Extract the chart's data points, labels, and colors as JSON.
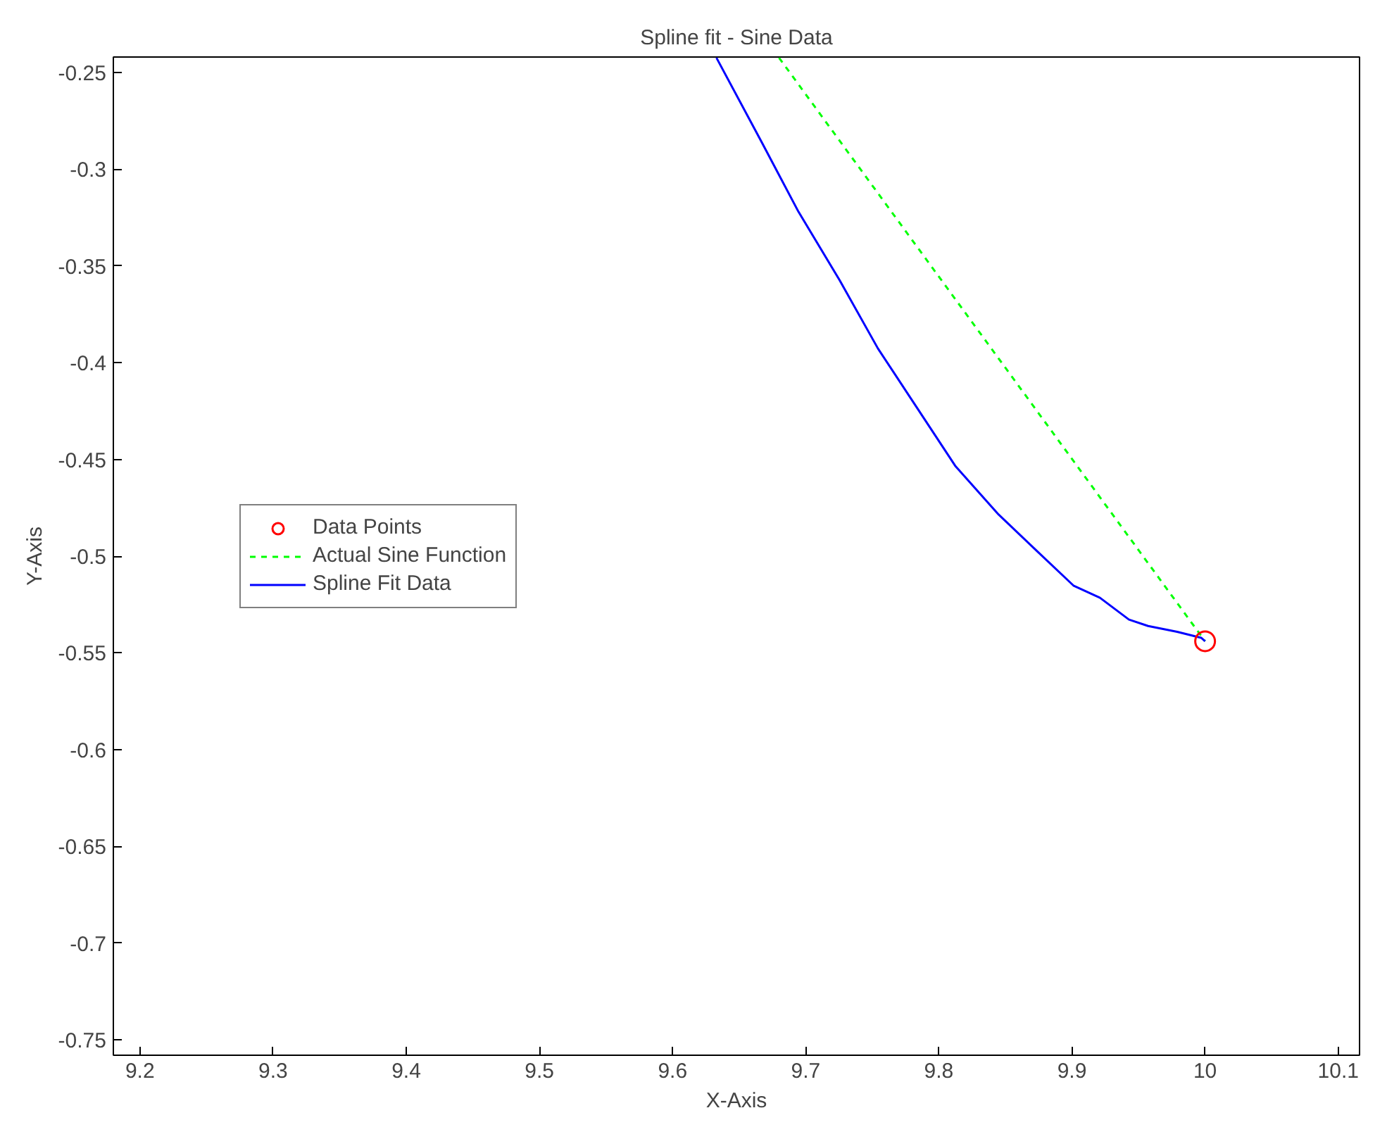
{
  "chart_data": {
    "type": "line",
    "title": "Spline fit - Sine Data",
    "xlabel": "X-Axis",
    "ylabel": "Y-Axis",
    "xlim": [
      9.18,
      10.116
    ],
    "ylim": [
      -0.758,
      -0.242
    ],
    "xticks": [
      9.2,
      9.3,
      9.4,
      9.5,
      9.6,
      9.7,
      9.8,
      9.9,
      10,
      10.1
    ],
    "yticks": [
      -0.25,
      -0.3,
      -0.35,
      -0.4,
      -0.45,
      -0.5,
      -0.55,
      -0.6,
      -0.65,
      -0.7,
      -0.75
    ],
    "grid": false,
    "legend": "left",
    "series": [
      {
        "name": "Data Points",
        "type": "scatter",
        "marker": "circle",
        "color": "#ff0000",
        "x": [
          10
        ],
        "values": [
          -0.544
        ]
      },
      {
        "name": "Actual Sine Function",
        "type": "line",
        "line_style": "dashed",
        "color": "#00ff00",
        "x": [
          9.68,
          10
        ],
        "values": [
          -0.2424,
          -0.544
        ]
      },
      {
        "name": "Spline Fit Data",
        "line_style": "solid",
        "color": "#0000ff",
        "x": [
          9.633,
          9.6674,
          9.6946,
          9.7254,
          9.7543,
          9.7833,
          9.8123,
          9.8449,
          9.8739,
          9.9011,
          9.921,
          9.9428,
          9.9572,
          9.979,
          9.997,
          10
        ],
        "values": [
          -0.2424,
          -0.2866,
          -0.322,
          -0.3573,
          -0.3927,
          -0.423,
          -0.4533,
          -0.4785,
          -0.4975,
          -0.5152,
          -0.5215,
          -0.5328,
          -0.5361,
          -0.5391,
          -0.5422,
          -0.544
        ]
      }
    ]
  }
}
